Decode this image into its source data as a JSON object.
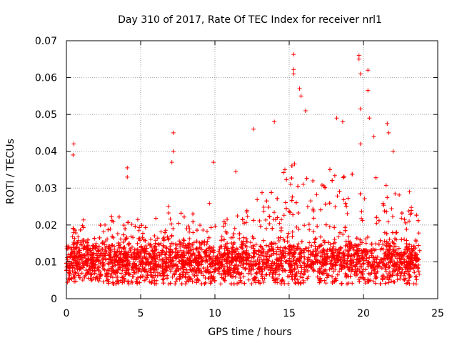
{
  "chart_data": {
    "type": "scatter",
    "title": "Day 310 of 2017, Rate Of TEC Index for receiver nrl1",
    "xlabel": "GPS time / hours",
    "ylabel": "ROTI / TECUs",
    "xlim": [
      0,
      25
    ],
    "ylim": [
      0,
      0.07
    ],
    "xticks": [
      0,
      5,
      10,
      15,
      20,
      25
    ],
    "yticks": [
      0,
      0.01,
      0.02,
      0.03,
      0.04,
      0.05,
      0.06,
      0.07
    ],
    "xtick_labels": [
      "0",
      "5",
      "10",
      "15",
      "20",
      "25"
    ],
    "ytick_labels": [
      "0",
      "0.01",
      "0.02",
      "0.03",
      "0.04",
      "0.05",
      "0.06",
      "0.07"
    ],
    "grid": true,
    "marker": "+",
    "color": "#ff0000",
    "x_range_of_data": [
      0.0,
      23.8
    ],
    "notable_points": [
      {
        "x": 0.5,
        "y": 0.042
      },
      {
        "x": 0.45,
        "y": 0.039
      },
      {
        "x": 4.1,
        "y": 0.0355
      },
      {
        "x": 4.1,
        "y": 0.033
      },
      {
        "x": 7.2,
        "y": 0.045
      },
      {
        "x": 7.2,
        "y": 0.04
      },
      {
        "x": 7.1,
        "y": 0.037
      },
      {
        "x": 9.9,
        "y": 0.037
      },
      {
        "x": 11.4,
        "y": 0.0345
      },
      {
        "x": 12.6,
        "y": 0.046
      },
      {
        "x": 14.0,
        "y": 0.048
      },
      {
        "x": 15.3,
        "y": 0.0663
      },
      {
        "x": 15.3,
        "y": 0.0622
      },
      {
        "x": 15.3,
        "y": 0.061
      },
      {
        "x": 15.7,
        "y": 0.057
      },
      {
        "x": 15.8,
        "y": 0.055
      },
      {
        "x": 16.1,
        "y": 0.051
      },
      {
        "x": 18.2,
        "y": 0.049
      },
      {
        "x": 18.6,
        "y": 0.048
      },
      {
        "x": 19.7,
        "y": 0.066
      },
      {
        "x": 19.7,
        "y": 0.065
      },
      {
        "x": 19.8,
        "y": 0.061
      },
      {
        "x": 19.8,
        "y": 0.0515
      },
      {
        "x": 19.8,
        "y": 0.042
      },
      {
        "x": 20.3,
        "y": 0.062
      },
      {
        "x": 20.3,
        "y": 0.0565
      },
      {
        "x": 20.4,
        "y": 0.049
      },
      {
        "x": 20.7,
        "y": 0.044
      },
      {
        "x": 21.6,
        "y": 0.0475
      },
      {
        "x": 21.7,
        "y": 0.045
      },
      {
        "x": 22.0,
        "y": 0.04
      },
      {
        "x": 23.1,
        "y": 0.029
      }
    ],
    "baseline_envelope": [
      {
        "x": 0,
        "ymin": 0.004,
        "ymax": 0.017
      },
      {
        "x": 1,
        "ymin": 0.005,
        "ymax": 0.022
      },
      {
        "x": 2,
        "ymin": 0.005,
        "ymax": 0.019
      },
      {
        "x": 3,
        "ymin": 0.004,
        "ymax": 0.023
      },
      {
        "x": 4,
        "ymin": 0.004,
        "ymax": 0.025
      },
      {
        "x": 5,
        "ymin": 0.004,
        "ymax": 0.021
      },
      {
        "x": 6,
        "ymin": 0.004,
        "ymax": 0.022
      },
      {
        "x": 7,
        "ymin": 0.004,
        "ymax": 0.026
      },
      {
        "x": 8,
        "ymin": 0.004,
        "ymax": 0.023
      },
      {
        "x": 9,
        "ymin": 0.004,
        "ymax": 0.024
      },
      {
        "x": 10,
        "ymin": 0.004,
        "ymax": 0.027
      },
      {
        "x": 11,
        "ymin": 0.004,
        "ymax": 0.024
      },
      {
        "x": 12,
        "ymin": 0.004,
        "ymax": 0.028
      },
      {
        "x": 13,
        "ymin": 0.004,
        "ymax": 0.03
      },
      {
        "x": 14,
        "ymin": 0.004,
        "ymax": 0.032
      },
      {
        "x": 15,
        "ymin": 0.004,
        "ymax": 0.038
      },
      {
        "x": 16,
        "ymin": 0.004,
        "ymax": 0.036
      },
      {
        "x": 17,
        "ymin": 0.004,
        "ymax": 0.03
      },
      {
        "x": 18,
        "ymin": 0.004,
        "ymax": 0.038
      },
      {
        "x": 19,
        "ymin": 0.004,
        "ymax": 0.034
      },
      {
        "x": 20,
        "ymin": 0.004,
        "ymax": 0.036
      },
      {
        "x": 21,
        "ymin": 0.004,
        "ymax": 0.034
      },
      {
        "x": 22,
        "ymin": 0.004,
        "ymax": 0.03
      },
      {
        "x": 23,
        "ymin": 0.004,
        "ymax": 0.026
      },
      {
        "x": 23.8,
        "ymin": 0.004,
        "ymax": 0.022
      }
    ]
  }
}
